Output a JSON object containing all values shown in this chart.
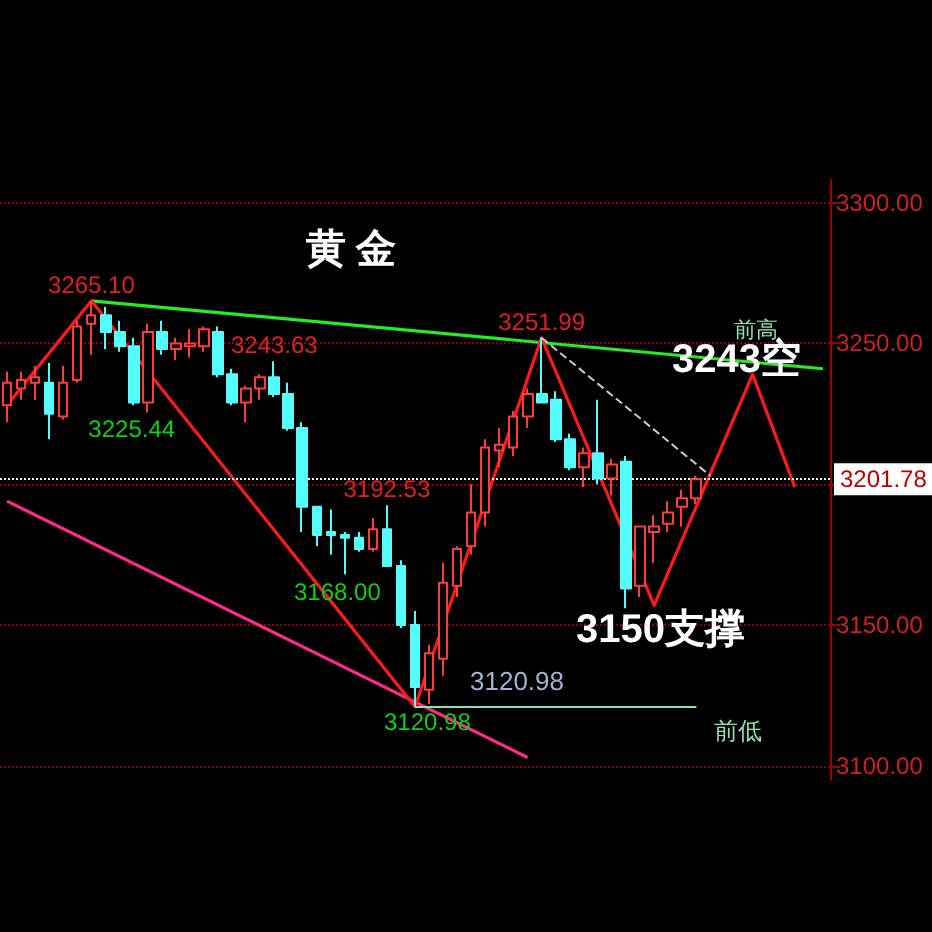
{
  "chart_data": {
    "type": "candlestick",
    "title": "黄 金",
    "categories": [
      null,
      null,
      null,
      null,
      null,
      null,
      null,
      null,
      null,
      null,
      null,
      null,
      null,
      null,
      null,
      null,
      null,
      null,
      null,
      null,
      null,
      null,
      null,
      null,
      null,
      null,
      null,
      null,
      null,
      null,
      null,
      null,
      null,
      null,
      null,
      null,
      null,
      null,
      null,
      null,
      null,
      null,
      null,
      null,
      null,
      null,
      null,
      null,
      null,
      null,
      null,
      null,
      null,
      null,
      null,
      null,
      null,
      null,
      null
    ],
    "ohlc": [
      [
        3228,
        3240,
        3222,
        3236
      ],
      [
        3234,
        3240,
        3230,
        3237
      ],
      [
        3236,
        3242,
        3230,
        3238
      ],
      [
        3236,
        3243,
        3216,
        3225
      ],
      [
        3224,
        3242,
        3223,
        3236
      ],
      [
        3237,
        3258,
        3236,
        3256
      ],
      [
        3257,
        3265.1,
        3246,
        3260
      ],
      [
        3260,
        3263,
        3248,
        3254
      ],
      [
        3254,
        3258,
        3247,
        3249
      ],
      [
        3249,
        3252,
        3228,
        3229
      ],
      [
        3229,
        3257,
        3225.44,
        3254
      ],
      [
        3254,
        3258,
        3246,
        3248
      ],
      [
        3248,
        3252,
        3244,
        3250
      ],
      [
        3249,
        3255,
        3245,
        3250
      ],
      [
        3249,
        3256,
        3247,
        3255
      ],
      [
        3254,
        3256,
        3238,
        3239
      ],
      [
        3239,
        3241,
        3228,
        3229
      ],
      [
        3229,
        3235,
        3222,
        3234
      ],
      [
        3234,
        3239,
        3230,
        3238
      ],
      [
        3238,
        3243.63,
        3231,
        3232
      ],
      [
        3232,
        3236,
        3219,
        3220
      ],
      [
        3220,
        3222,
        3183,
        3192
      ],
      [
        3192,
        3192,
        3178,
        3182
      ],
      [
        3183,
        3191,
        3175,
        3182
      ],
      [
        3182,
        3183,
        3168,
        3181
      ],
      [
        3181,
        3183,
        3176,
        3177
      ],
      [
        3177,
        3188,
        3176,
        3184
      ],
      [
        3184,
        3192.53,
        3171,
        3171
      ],
      [
        3171,
        3173,
        3149,
        3150
      ],
      [
        3150,
        3155,
        3120.98,
        3128
      ],
      [
        3127,
        3143,
        3122,
        3140
      ],
      [
        3138,
        3172,
        3132,
        3165
      ],
      [
        3164,
        3178,
        3160,
        3177
      ],
      [
        3178,
        3200,
        3175,
        3190
      ],
      [
        3190,
        3216,
        3185,
        3213
      ],
      [
        3212,
        3220,
        3206,
        3214
      ],
      [
        3213,
        3226,
        3210,
        3224
      ],
      [
        3224,
        3234,
        3220,
        3232
      ],
      [
        3232,
        3251.99,
        3229,
        3229
      ],
      [
        3230,
        3233,
        3215,
        3216
      ],
      [
        3216,
        3218,
        3205,
        3206
      ],
      [
        3206,
        3213,
        3199,
        3211
      ],
      [
        3211,
        3230,
        3200,
        3202
      ],
      [
        3202,
        3209,
        3196,
        3207
      ],
      [
        3208,
        3210,
        3156,
        3163
      ],
      [
        3164,
        3185,
        3160,
        3185
      ],
      [
        3183,
        3189,
        3172,
        3185
      ],
      [
        3186,
        3194,
        3183,
        3190
      ],
      [
        3192,
        3198,
        3185,
        3195
      ],
      [
        3195,
        3203,
        3193,
        3201.78
      ],
      null,
      null,
      null,
      null,
      null,
      null,
      null,
      null,
      null
    ],
    "colors": [
      "#ff3c3c",
      "#ff3c3c",
      "#ff3c3c",
      "#54fcfc",
      "#ff3c3c",
      "#ff3c3c",
      "#ff3c3c",
      "#54fcfc",
      "#54fcfc",
      "#54fcfc",
      "#ff3c3c",
      "#54fcfc",
      "#ff3c3c",
      "#ff3c3c",
      "#ff3c3c",
      "#54fcfc",
      "#54fcfc",
      "#ff3c3c",
      "#ff3c3c",
      "#54fcfc",
      "#54fcfc",
      "#54fcfc",
      "#54fcfc",
      "#54fcfc",
      "#54fcfc",
      "#54fcfc",
      "#ff3c3c",
      "#54fcfc",
      "#54fcfc",
      "#54fcfc",
      "#ff3c3c",
      "#ff3c3c",
      "#ff3c3c",
      "#ff3c3c",
      "#ff3c3c",
      "#ff3c3c",
      "#ff3c3c",
      "#ff3c3c",
      "#54fcfc",
      "#54fcfc",
      "#54fcfc",
      "#ff3c3c",
      "#54fcfc",
      "#ff3c3c",
      "#54fcfc",
      "#ff3c3c",
      "#ff3c3c",
      "#ff3c3c",
      "#ff3c3c",
      "#ff3c3c",
      null,
      null,
      null,
      null,
      null,
      null,
      null,
      null,
      null
    ],
    "series": [
      {
        "type": "line",
        "color": "#22ee22",
        "line_style": "solid",
        "values": [
          null,
          null,
          null,
          null,
          null,
          null,
          3265.1,
          null,
          null,
          null,
          null,
          null,
          null,
          null,
          null,
          null,
          null,
          null,
          null,
          null,
          null,
          null,
          null,
          null,
          null,
          null,
          null,
          null,
          null,
          null,
          null,
          null,
          null,
          null,
          null,
          null,
          null,
          null,
          null,
          null,
          null,
          null,
          null,
          null,
          null,
          null,
          null,
          null,
          null,
          null,
          null,
          null,
          null,
          null,
          null,
          null,
          null,
          null,
          3241
        ]
      },
      {
        "type": "line",
        "color": "#ff2a8a",
        "line_style": "solid",
        "values": [
          3194,
          null,
          null,
          null,
          null,
          null,
          null,
          null,
          null,
          null,
          null,
          null,
          null,
          null,
          null,
          null,
          null,
          null,
          null,
          null,
          null,
          null,
          null,
          null,
          null,
          null,
          null,
          null,
          null,
          null,
          null,
          null,
          null,
          null,
          null,
          null,
          null,
          3103,
          null,
          null,
          null,
          null,
          null,
          null,
          null,
          null,
          null,
          null,
          null,
          null,
          null,
          null,
          null,
          null,
          null,
          null,
          null,
          null,
          null
        ]
      },
      {
        "type": "line",
        "color": "#ff1a1a",
        "line_style": "solid",
        "values": [
          3228,
          null,
          null,
          null,
          null,
          null,
          3265.1,
          null,
          null,
          null,
          null,
          null,
          null,
          null,
          null,
          null,
          null,
          null,
          null,
          null,
          null,
          null,
          null,
          null,
          null,
          null,
          null,
          null,
          null,
          3121,
          null,
          null,
          null,
          null,
          null,
          null,
          null,
          null,
          3252,
          null,
          null,
          null,
          null,
          null,
          null,
          null,
          3157,
          null,
          null,
          null,
          null,
          null,
          null,
          3239,
          null,
          null,
          3199,
          null,
          null
        ]
      },
      {
        "type": "line",
        "color": "#cccccc",
        "line_style": "dashed",
        "values": [
          null,
          null,
          null,
          null,
          null,
          null,
          null,
          null,
          null,
          null,
          null,
          null,
          null,
          null,
          null,
          null,
          null,
          null,
          null,
          null,
          null,
          null,
          null,
          null,
          null,
          null,
          null,
          null,
          null,
          null,
          null,
          null,
          null,
          null,
          null,
          null,
          null,
          null,
          3252,
          null,
          null,
          null,
          null,
          null,
          null,
          null,
          null,
          null,
          null,
          null,
          3203,
          null,
          null,
          null,
          null,
          null,
          null,
          null,
          null
        ]
      }
    ],
    "ylim": [
      3095,
      3308
    ],
    "yticks": [
      {
        "value": 3100,
        "label": "3100.00"
      },
      {
        "value": 3150,
        "label": "3150.00"
      },
      {
        "value": 3200,
        "label": null
      },
      {
        "value": 3250,
        "label": "3250.00"
      },
      {
        "value": 3300,
        "label": "3300.00"
      }
    ],
    "grid": "y",
    "tick_labels": "y",
    "ref_lines": [
      {
        "axis": "y",
        "value": 3201.78,
        "label": "3201.78",
        "color": "#ffffff"
      },
      {
        "axis": "y",
        "value": 3120.98,
        "label": "前低",
        "color": "#8fe0b0"
      }
    ],
    "annotations": [
      {
        "text": "3265.10",
        "y": 3265.1
      },
      {
        "text": "3225.44",
        "y": 3225.44
      },
      {
        "text": "3243.63",
        "y": 3243.63
      },
      {
        "text": "3192.53",
        "y": 3192.53
      },
      "3168.00",
      "3120.98",
      {
        "text": "3251.99",
        "y": 3251.99
      },
      "3243空",
      "3150支撑",
      "前高",
      "3120.98"
    ]
  }
}
